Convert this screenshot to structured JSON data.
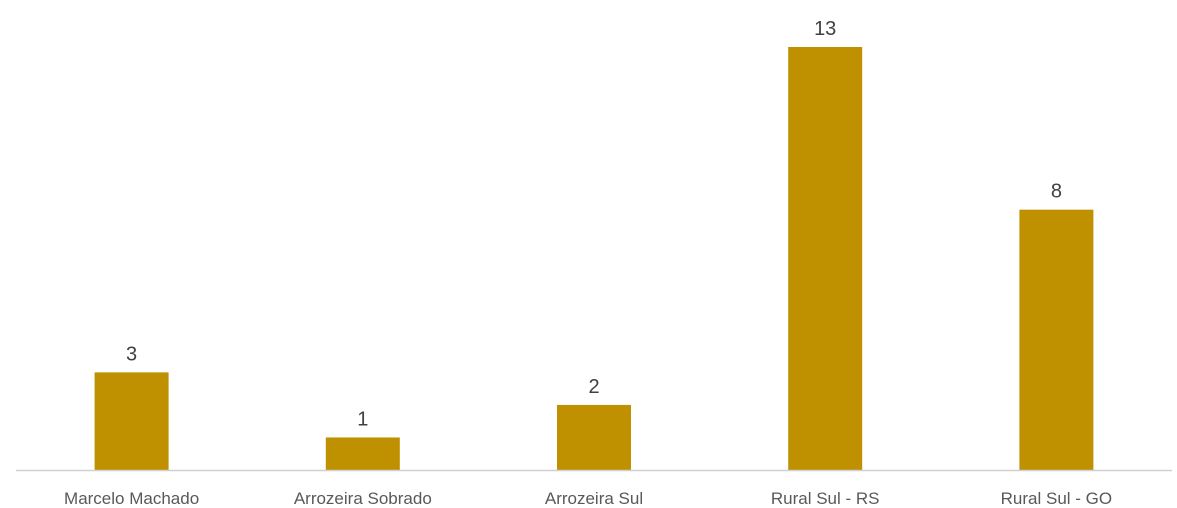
{
  "chart_data": {
    "type": "bar",
    "title": "",
    "xlabel": "",
    "ylabel": "",
    "categories": [
      "Marcelo Machado",
      "Arrozeira Sobrado",
      "Arrozeira Sul",
      "Rural Sul - RS",
      "Rural Sul - GO"
    ],
    "values": [
      3,
      1,
      2,
      13,
      8
    ],
    "ylim": [
      0,
      13
    ],
    "grid": false,
    "legend": "none",
    "data_labels": true,
    "colors": {
      "bar": "#BF9000",
      "axis": "#D0D0D0",
      "data_label": "#404040",
      "tick_label": "#595959"
    }
  }
}
